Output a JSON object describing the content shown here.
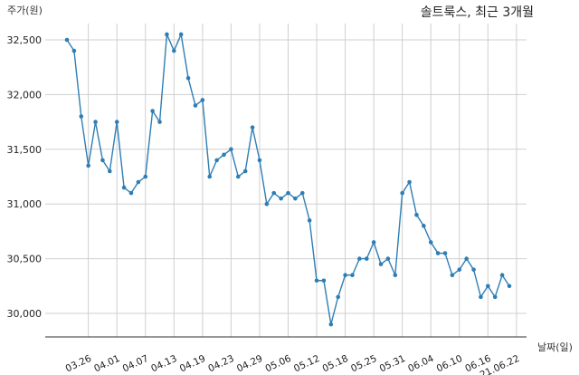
{
  "chart_data": {
    "type": "line",
    "title": "솔트룩스, 최근 3개월",
    "ylabel": "주가(원)",
    "xlabel": "날짜(일)",
    "ylim": [
      29780,
      32700
    ],
    "y_ticks": [
      30000,
      30500,
      31000,
      31500,
      32000,
      32500
    ],
    "y_tick_labels": [
      "30,000",
      "30,500",
      "31,000",
      "31,500",
      "32,000",
      "32,500"
    ],
    "x_ticks": [
      {
        "index": 3,
        "label": "03.26"
      },
      {
        "index": 7,
        "label": "04.01"
      },
      {
        "index": 11,
        "label": "04.07"
      },
      {
        "index": 15,
        "label": "04.13"
      },
      {
        "index": 19,
        "label": "04.19"
      },
      {
        "index": 23,
        "label": "04.23"
      },
      {
        "index": 27,
        "label": "04.29"
      },
      {
        "index": 31,
        "label": "05.06"
      },
      {
        "index": 35,
        "label": "05.12"
      },
      {
        "index": 39,
        "label": "05.18"
      },
      {
        "index": 43,
        "label": "05.25"
      },
      {
        "index": 47,
        "label": "05.31"
      },
      {
        "index": 51,
        "label": "06.04"
      },
      {
        "index": 55,
        "label": "06.10"
      },
      {
        "index": 59,
        "label": "06.16"
      },
      {
        "index": 63,
        "label": "21.06.22"
      }
    ],
    "grid": true,
    "line_color": "#2e7eb5",
    "series": [
      {
        "values": [
          32500,
          32400,
          31800,
          31350,
          31750,
          31400,
          31300,
          31750,
          31150,
          31100,
          31200,
          31250,
          31850,
          31750,
          32550,
          32400,
          32550,
          32150,
          31900,
          31950,
          31250,
          31400,
          31450,
          31500,
          31250,
          31300,
          31700,
          31400,
          31000,
          31100,
          31050,
          31100,
          31050,
          31100,
          30850,
          30300,
          30300,
          29900,
          30150,
          30350,
          30350,
          30500,
          30500,
          30650,
          30450,
          30500,
          30350,
          31100,
          31200,
          30900,
          30800,
          30650,
          30550,
          30550,
          30350,
          30400,
          30500,
          30400,
          30150,
          30250,
          30150,
          30350,
          30250
        ]
      }
    ]
  }
}
